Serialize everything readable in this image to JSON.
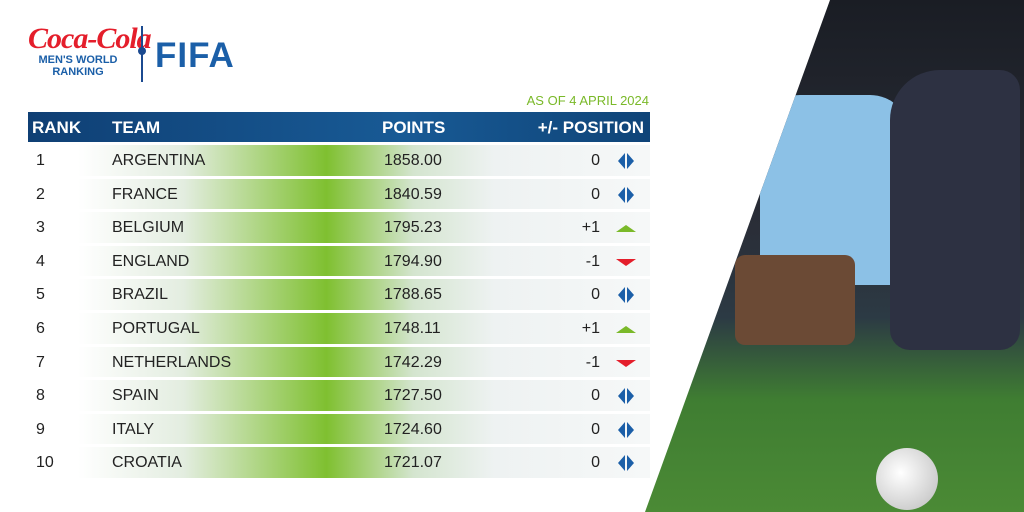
{
  "brand": {
    "sponsor": "Coca-Cola",
    "title_line1": "MEN'S WORLD",
    "title_line2": "RANKING",
    "org": "FIFA"
  },
  "date": "AS OF 4 APRIL 2024",
  "headers": {
    "rank": "RANK",
    "team": "TEAM",
    "points": "POINTS",
    "change": "+/- POSITION"
  },
  "colors": {
    "header": "#185a95",
    "up": "#7ab929",
    "down": "#e41e2b",
    "same": "#1b5fa8"
  },
  "rows": [
    {
      "rank": "1",
      "team": "ARGENTINA",
      "points": "1858.00",
      "change": "0",
      "trend": "same"
    },
    {
      "rank": "2",
      "team": "FRANCE",
      "points": "1840.59",
      "change": "0",
      "trend": "same"
    },
    {
      "rank": "3",
      "team": "BELGIUM",
      "points": "1795.23",
      "change": "+1",
      "trend": "up"
    },
    {
      "rank": "4",
      "team": "ENGLAND",
      "points": "1794.90",
      "change": "-1",
      "trend": "down"
    },
    {
      "rank": "5",
      "team": "BRAZIL",
      "points": "1788.65",
      "change": "0",
      "trend": "same"
    },
    {
      "rank": "6",
      "team": "PORTUGAL",
      "points": "1748.11",
      "change": "+1",
      "trend": "up"
    },
    {
      "rank": "7",
      "team": "NETHERLANDS",
      "points": "1742.29",
      "change": "-1",
      "trend": "down"
    },
    {
      "rank": "8",
      "team": "SPAIN",
      "points": "1727.50",
      "change": "0",
      "trend": "same"
    },
    {
      "rank": "9",
      "team": "ITALY",
      "points": "1724.60",
      "change": "0",
      "trend": "same"
    },
    {
      "rank": "10",
      "team": "CROATIA",
      "points": "1721.07",
      "change": "0",
      "trend": "same"
    }
  ]
}
